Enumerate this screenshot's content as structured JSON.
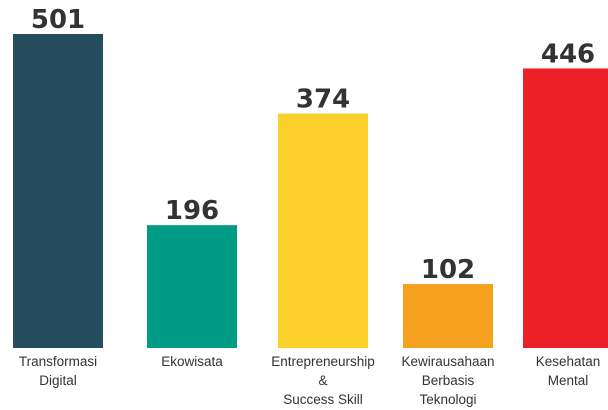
{
  "chart_data": {
    "type": "bar",
    "categories": [
      [
        "Transformasi",
        "Digital"
      ],
      [
        "Ekowisata"
      ],
      [
        "Entrepreneurship",
        "&",
        "Success Skill"
      ],
      [
        "Kewirausahaan",
        "Berbasis",
        "Teknologi"
      ],
      [
        "Kesehatan",
        "Mental"
      ]
    ],
    "values": [
      501,
      196,
      374,
      102,
      446
    ],
    "value_labels": [
      "501",
      "196",
      "374",
      "102",
      "446"
    ],
    "colors": [
      "#264d5e",
      "#009b85",
      "#fcd02b",
      "#f5a11f",
      "#ec2027"
    ],
    "title": "",
    "xlabel": "",
    "ylabel": "",
    "ylim": [
      0,
      501
    ],
    "grid": false,
    "legend": "none"
  }
}
